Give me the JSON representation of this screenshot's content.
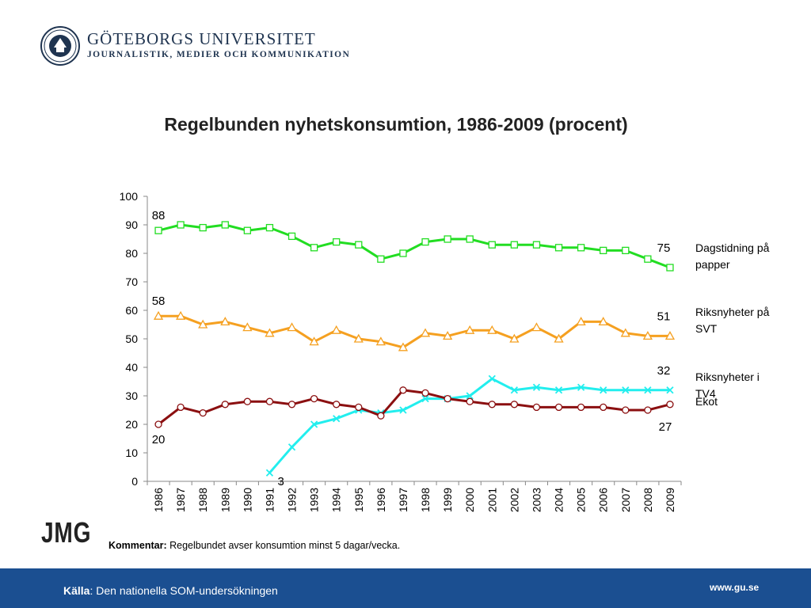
{
  "header": {
    "university": "GÖTEBORGS UNIVERSITET",
    "department": "JOURNALISTIK, MEDIER OCH KOMMUNIKATION"
  },
  "footer": {
    "source_label": "Källa",
    "source_text": ": Den nationella SOM-undersökningen",
    "url": "www.gu.se"
  },
  "logo_text": "JMG",
  "comment": {
    "label": "Kommentar:",
    "text": " Regelbundet avser konsumtion minst 5 dagar/vecka."
  },
  "colors": {
    "footer_bg": "#1b4f91",
    "header_text": "#1f3450"
  },
  "chart_data": {
    "type": "line",
    "title": "Regelbunden nyhetskonsumtion, 1986-2009 (procent)",
    "xlabel": "",
    "ylabel": "",
    "ylim": [
      0,
      100
    ],
    "yticks": [
      0,
      10,
      20,
      30,
      40,
      50,
      60,
      70,
      80,
      90,
      100
    ],
    "grid": false,
    "legend_placement": "right",
    "categories": [
      "1986",
      "1987",
      "1988",
      "1989",
      "1990",
      "1991",
      "1992",
      "1993",
      "1994",
      "1995",
      "1996",
      "1997",
      "1998",
      "1999",
      "2000",
      "2001",
      "2002",
      "2003",
      "2004",
      "2005",
      "2006",
      "2007",
      "2008",
      "2009"
    ],
    "series": [
      {
        "name": "Dagstidning på papper",
        "color": "#22dd22",
        "marker": "square",
        "values": [
          88,
          90,
          89,
          90,
          88,
          89,
          86,
          82,
          84,
          83,
          78,
          80,
          84,
          85,
          85,
          83,
          83,
          83,
          82,
          82,
          81,
          81,
          78,
          75
        ],
        "labels": [
          {
            "index": 0,
            "text": "88",
            "pos": "above"
          },
          {
            "index": 23,
            "text": "75",
            "pos": "above"
          }
        ]
      },
      {
        "name": "Riksnyheter på SVT",
        "color": "#f5a020",
        "marker": "triangle",
        "values": [
          58,
          58,
          55,
          56,
          54,
          52,
          54,
          49,
          53,
          50,
          49,
          47,
          52,
          51,
          53,
          53,
          50,
          54,
          50,
          56,
          56,
          52,
          51,
          51
        ],
        "labels": [
          {
            "index": 0,
            "text": "58",
            "pos": "above"
          },
          {
            "index": 23,
            "text": "51",
            "pos": "above"
          }
        ]
      },
      {
        "name": "Riksnyheter i TV4",
        "color": "#22eeee",
        "marker": "x",
        "values": [
          null,
          null,
          null,
          null,
          null,
          3,
          12,
          20,
          22,
          25,
          24,
          25,
          29,
          29,
          30,
          36,
          32,
          33,
          32,
          33,
          32,
          32,
          32,
          32
        ],
        "labels": [
          {
            "index": 5,
            "text": "3",
            "pos": "right"
          },
          {
            "index": 23,
            "text": "32",
            "pos": "above"
          }
        ]
      },
      {
        "name": "Ekot",
        "color": "#8b0f10",
        "marker": "circle",
        "values": [
          20,
          26,
          24,
          27,
          28,
          28,
          27,
          29,
          27,
          26,
          23,
          32,
          31,
          29,
          28,
          27,
          27,
          26,
          26,
          26,
          26,
          25,
          25,
          27
        ],
        "labels": [
          {
            "index": 0,
            "text": "20",
            "pos": "below"
          },
          {
            "index": 23,
            "text": "27",
            "pos": "below"
          }
        ]
      }
    ]
  }
}
